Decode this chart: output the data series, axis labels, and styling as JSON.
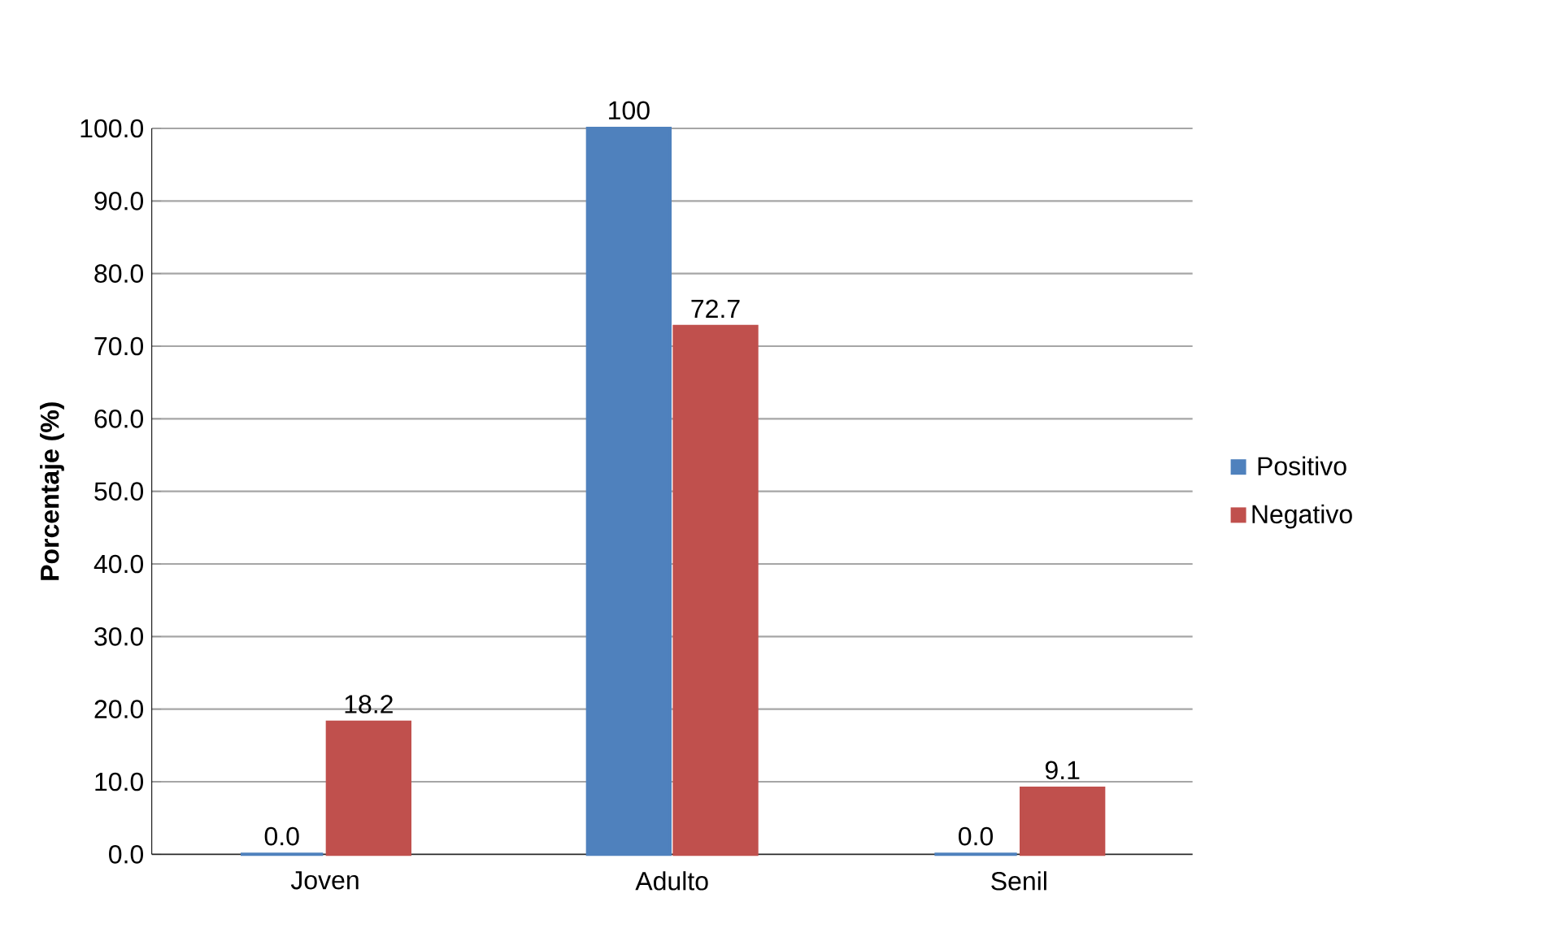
{
  "chart_data": {
    "type": "bar",
    "ylabel": "Porcentaje (%)",
    "categories": [
      "Joven",
      "Adulto",
      "Senil"
    ],
    "series": [
      {
        "name": "Positivo",
        "color": "#4f81bd",
        "values": [
          0,
          100,
          0
        ],
        "value_labels": [
          "0.0",
          "100",
          "0.0"
        ]
      },
      {
        "name": "Negativo",
        "color": "#c0504d",
        "values": [
          18.2,
          72.7,
          9.1
        ],
        "value_labels": [
          "18.2",
          "72.7",
          "9.1"
        ]
      }
    ],
    "ylim": [
      0,
      100
    ],
    "yticks": [
      {
        "value": 0,
        "label": "0.0"
      },
      {
        "value": 10,
        "label": "10.0"
      },
      {
        "value": 20,
        "label": "20.0"
      },
      {
        "value": 30,
        "label": "30.0"
      },
      {
        "value": 40,
        "label": "40.0"
      },
      {
        "value": 50,
        "label": "50.0"
      },
      {
        "value": 60,
        "label": "60.0"
      },
      {
        "value": 70,
        "label": "70.0"
      },
      {
        "value": 80,
        "label": "80.0"
      },
      {
        "value": 90,
        "label": "90.0"
      },
      {
        "value": 100,
        "label": "100.0"
      }
    ],
    "grid": "y",
    "legend": "right"
  }
}
